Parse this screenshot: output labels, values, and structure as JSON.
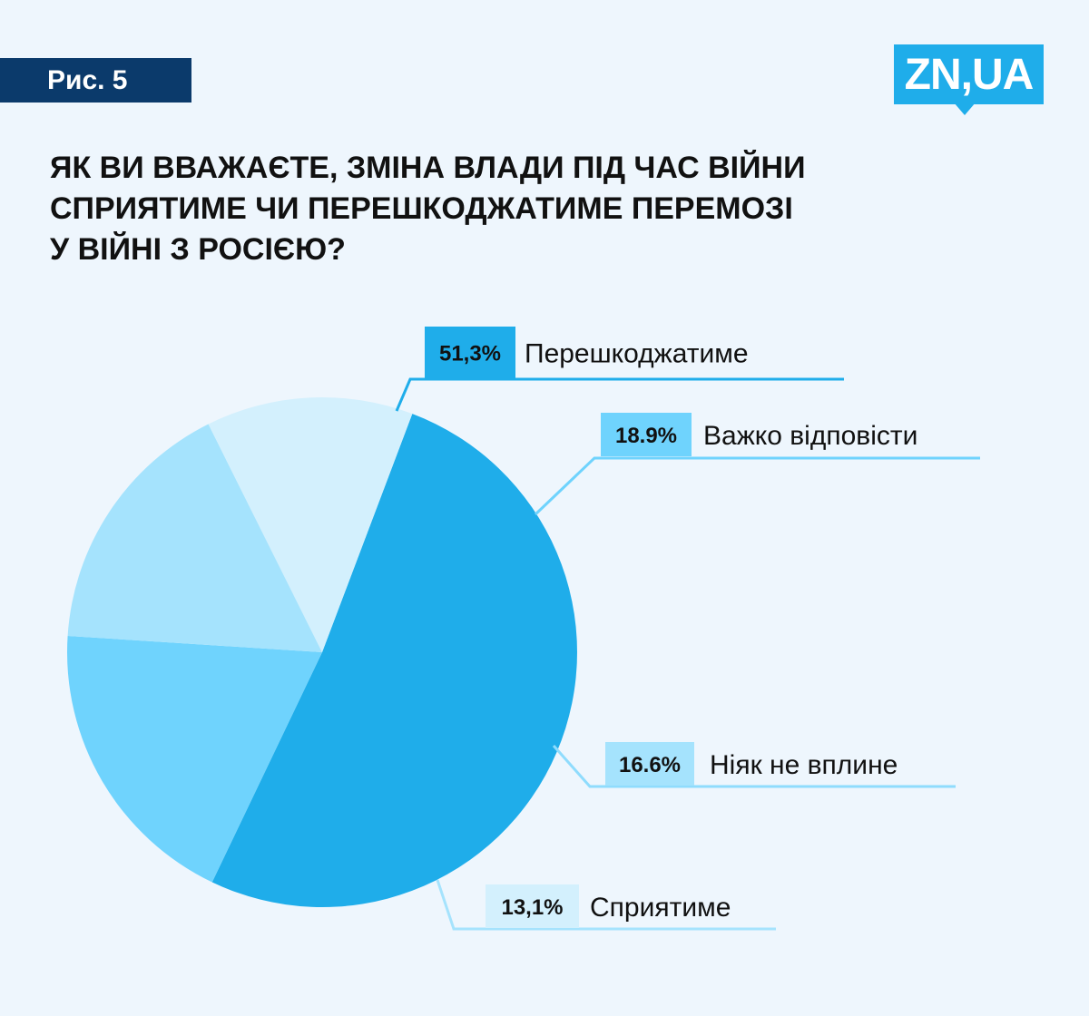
{
  "figure_label": "Рис. 5",
  "logo": {
    "text": "ZN,UA"
  },
  "title_lines": [
    "ЯК ВИ ВВАЖАЄТЕ, ЗМІНА ВЛАДИ ПІД ЧАС ВІЙНИ",
    "СПРИЯТИМЕ ЧИ ПЕРЕШКОДЖАТИМЕ ПЕРЕМОЗІ",
    "У ВІЙНІ З РОСІЄЮ?"
  ],
  "chart_data": {
    "type": "pie",
    "title": "ЯК ВИ ВВАЖАЄТЕ, ЗМІНА ВЛАДИ ПІД ЧАС ВІЙНИ СПРИЯТИМЕ ЧИ ПЕРЕШКОДЖАТИМЕ ПЕРЕМОЗІ У ВІЙНІ З РОСІЄЮ?",
    "slices": [
      {
        "label": "Перешкоджатиме",
        "value": 51.3,
        "display": "51,3%",
        "color": "#1fadea"
      },
      {
        "label": "Важко відповісти",
        "value": 18.9,
        "display": "18.9%",
        "color": "#6fd3fd"
      },
      {
        "label": "Ніяк не вплине",
        "value": 16.6,
        "display": "16.6%",
        "color": "#a5e3fd"
      },
      {
        "label": "Сприятиме",
        "value": 13.1,
        "display": "13,1%",
        "color": "#d3f0fd"
      }
    ],
    "start_label": "Перешкоджатиме",
    "direction": "clockwise"
  },
  "colors": {
    "background": "#eef6fd",
    "badge": "#0b3a6b",
    "accent": "#1fadea"
  }
}
